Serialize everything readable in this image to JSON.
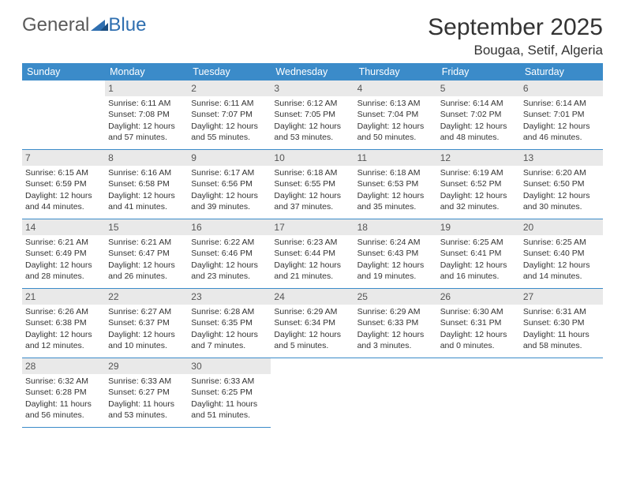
{
  "logo": {
    "word1": "General",
    "word2": "Blue"
  },
  "title": "September 2025",
  "location": "Bougaa, Setif, Algeria",
  "weekdays": [
    "Sunday",
    "Monday",
    "Tuesday",
    "Wednesday",
    "Thursday",
    "Friday",
    "Saturday"
  ],
  "colors": {
    "header_bg": "#3b8bc9",
    "header_text": "#ffffff",
    "daybar_bg": "#e9e9e9",
    "divider": "#3b8bc9",
    "logo_gray": "#5a5a5a",
    "logo_blue": "#2f6fb0",
    "text": "#333333"
  },
  "grid": [
    [
      null,
      {
        "n": "1",
        "sr": "Sunrise: 6:11 AM",
        "ss": "Sunset: 7:08 PM",
        "dl": "Daylight: 12 hours and 57 minutes."
      },
      {
        "n": "2",
        "sr": "Sunrise: 6:11 AM",
        "ss": "Sunset: 7:07 PM",
        "dl": "Daylight: 12 hours and 55 minutes."
      },
      {
        "n": "3",
        "sr": "Sunrise: 6:12 AM",
        "ss": "Sunset: 7:05 PM",
        "dl": "Daylight: 12 hours and 53 minutes."
      },
      {
        "n": "4",
        "sr": "Sunrise: 6:13 AM",
        "ss": "Sunset: 7:04 PM",
        "dl": "Daylight: 12 hours and 50 minutes."
      },
      {
        "n": "5",
        "sr": "Sunrise: 6:14 AM",
        "ss": "Sunset: 7:02 PM",
        "dl": "Daylight: 12 hours and 48 minutes."
      },
      {
        "n": "6",
        "sr": "Sunrise: 6:14 AM",
        "ss": "Sunset: 7:01 PM",
        "dl": "Daylight: 12 hours and 46 minutes."
      }
    ],
    [
      {
        "n": "7",
        "sr": "Sunrise: 6:15 AM",
        "ss": "Sunset: 6:59 PM",
        "dl": "Daylight: 12 hours and 44 minutes."
      },
      {
        "n": "8",
        "sr": "Sunrise: 6:16 AM",
        "ss": "Sunset: 6:58 PM",
        "dl": "Daylight: 12 hours and 41 minutes."
      },
      {
        "n": "9",
        "sr": "Sunrise: 6:17 AM",
        "ss": "Sunset: 6:56 PM",
        "dl": "Daylight: 12 hours and 39 minutes."
      },
      {
        "n": "10",
        "sr": "Sunrise: 6:18 AM",
        "ss": "Sunset: 6:55 PM",
        "dl": "Daylight: 12 hours and 37 minutes."
      },
      {
        "n": "11",
        "sr": "Sunrise: 6:18 AM",
        "ss": "Sunset: 6:53 PM",
        "dl": "Daylight: 12 hours and 35 minutes."
      },
      {
        "n": "12",
        "sr": "Sunrise: 6:19 AM",
        "ss": "Sunset: 6:52 PM",
        "dl": "Daylight: 12 hours and 32 minutes."
      },
      {
        "n": "13",
        "sr": "Sunrise: 6:20 AM",
        "ss": "Sunset: 6:50 PM",
        "dl": "Daylight: 12 hours and 30 minutes."
      }
    ],
    [
      {
        "n": "14",
        "sr": "Sunrise: 6:21 AM",
        "ss": "Sunset: 6:49 PM",
        "dl": "Daylight: 12 hours and 28 minutes."
      },
      {
        "n": "15",
        "sr": "Sunrise: 6:21 AM",
        "ss": "Sunset: 6:47 PM",
        "dl": "Daylight: 12 hours and 26 minutes."
      },
      {
        "n": "16",
        "sr": "Sunrise: 6:22 AM",
        "ss": "Sunset: 6:46 PM",
        "dl": "Daylight: 12 hours and 23 minutes."
      },
      {
        "n": "17",
        "sr": "Sunrise: 6:23 AM",
        "ss": "Sunset: 6:44 PM",
        "dl": "Daylight: 12 hours and 21 minutes."
      },
      {
        "n": "18",
        "sr": "Sunrise: 6:24 AM",
        "ss": "Sunset: 6:43 PM",
        "dl": "Daylight: 12 hours and 19 minutes."
      },
      {
        "n": "19",
        "sr": "Sunrise: 6:25 AM",
        "ss": "Sunset: 6:41 PM",
        "dl": "Daylight: 12 hours and 16 minutes."
      },
      {
        "n": "20",
        "sr": "Sunrise: 6:25 AM",
        "ss": "Sunset: 6:40 PM",
        "dl": "Daylight: 12 hours and 14 minutes."
      }
    ],
    [
      {
        "n": "21",
        "sr": "Sunrise: 6:26 AM",
        "ss": "Sunset: 6:38 PM",
        "dl": "Daylight: 12 hours and 12 minutes."
      },
      {
        "n": "22",
        "sr": "Sunrise: 6:27 AM",
        "ss": "Sunset: 6:37 PM",
        "dl": "Daylight: 12 hours and 10 minutes."
      },
      {
        "n": "23",
        "sr": "Sunrise: 6:28 AM",
        "ss": "Sunset: 6:35 PM",
        "dl": "Daylight: 12 hours and 7 minutes."
      },
      {
        "n": "24",
        "sr": "Sunrise: 6:29 AM",
        "ss": "Sunset: 6:34 PM",
        "dl": "Daylight: 12 hours and 5 minutes."
      },
      {
        "n": "25",
        "sr": "Sunrise: 6:29 AM",
        "ss": "Sunset: 6:33 PM",
        "dl": "Daylight: 12 hours and 3 minutes."
      },
      {
        "n": "26",
        "sr": "Sunrise: 6:30 AM",
        "ss": "Sunset: 6:31 PM",
        "dl": "Daylight: 12 hours and 0 minutes."
      },
      {
        "n": "27",
        "sr": "Sunrise: 6:31 AM",
        "ss": "Sunset: 6:30 PM",
        "dl": "Daylight: 11 hours and 58 minutes."
      }
    ],
    [
      {
        "n": "28",
        "sr": "Sunrise: 6:32 AM",
        "ss": "Sunset: 6:28 PM",
        "dl": "Daylight: 11 hours and 56 minutes."
      },
      {
        "n": "29",
        "sr": "Sunrise: 6:33 AM",
        "ss": "Sunset: 6:27 PM",
        "dl": "Daylight: 11 hours and 53 minutes."
      },
      {
        "n": "30",
        "sr": "Sunrise: 6:33 AM",
        "ss": "Sunset: 6:25 PM",
        "dl": "Daylight: 11 hours and 51 minutes."
      },
      null,
      null,
      null,
      null
    ]
  ]
}
